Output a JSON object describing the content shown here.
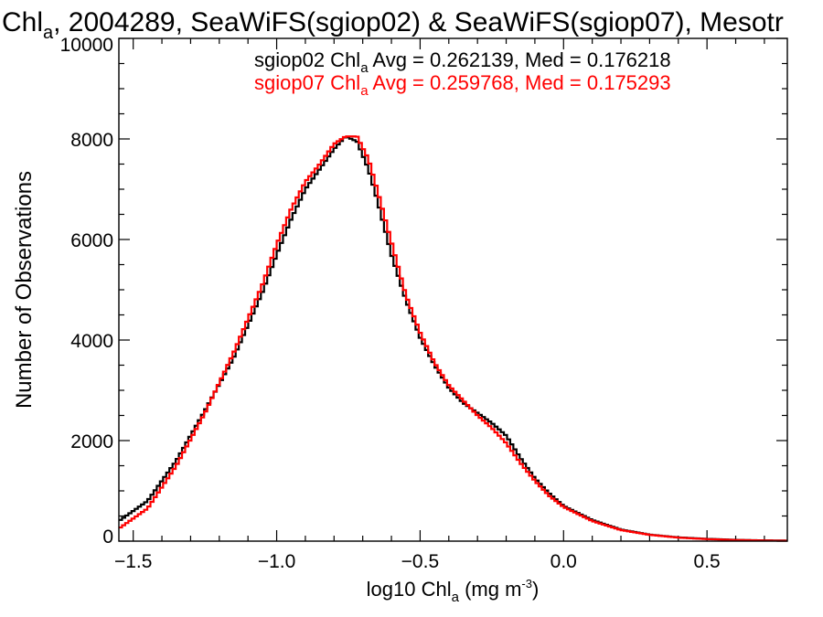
{
  "chart_data": {
    "type": "line",
    "title": {
      "prefix": "Chl",
      "sub": "a",
      "rest": ", 2004289, SeaWiFS(sgiop02) & SeaWiFS(sgiop07), Mesotr"
    },
    "xlabel": {
      "prefix": "log10 Chl",
      "sub": "a",
      "mid": " (mg m",
      "sup": "-3",
      "end": ")"
    },
    "ylabel": "Number of Observations",
    "xlim": [
      -1.55,
      0.78
    ],
    "ylim": [
      0,
      10000
    ],
    "x_ticks": [
      -1.5,
      -1.0,
      -0.5,
      0.0,
      0.5
    ],
    "x_tick_labels": [
      "−1.5",
      "−1.0",
      "−0.5",
      "0.0",
      "0.5"
    ],
    "y_ticks": [
      0,
      2000,
      4000,
      6000,
      8000,
      10000
    ],
    "y_tick_labels": [
      "0",
      "2000",
      "4000",
      "6000",
      "8000",
      "10000"
    ],
    "legend": [
      {
        "prefix": "sgiop02 Chl",
        "sub": "a",
        "rest": " Avg = 0.262139, Med = 0.176218",
        "color": "#000000"
      },
      {
        "prefix": "sgiop07 Chl",
        "sub": "a",
        "rest": " Avg = 0.259768, Med = 0.175293",
        "color": "#ff0000"
      }
    ],
    "legend_position": "top-right",
    "series": [
      {
        "name": "sgiop02",
        "color": "#000000",
        "x": [
          -1.55,
          -1.45,
          -1.35,
          -1.25,
          -1.15,
          -1.05,
          -1.0,
          -0.95,
          -0.9,
          -0.85,
          -0.8,
          -0.76,
          -0.72,
          -0.68,
          -0.65,
          -0.6,
          -0.55,
          -0.5,
          -0.45,
          -0.4,
          -0.35,
          -0.3,
          -0.25,
          -0.2,
          -0.15,
          -0.1,
          -0.05,
          0.0,
          0.1,
          0.2,
          0.3,
          0.4,
          0.5,
          0.6,
          0.7,
          0.78
        ],
        "y": [
          400,
          800,
          1600,
          2600,
          3650,
          4950,
          5700,
          6400,
          7000,
          7400,
          7800,
          8050,
          7950,
          7400,
          6800,
          5700,
          4800,
          4050,
          3500,
          3050,
          2750,
          2550,
          2350,
          2100,
          1650,
          1250,
          950,
          700,
          420,
          230,
          130,
          75,
          45,
          25,
          15,
          10
        ]
      },
      {
        "name": "sgiop07",
        "color": "#ff0000",
        "x": [
          -1.55,
          -1.45,
          -1.35,
          -1.25,
          -1.15,
          -1.05,
          -1.0,
          -0.95,
          -0.9,
          -0.85,
          -0.8,
          -0.76,
          -0.72,
          -0.68,
          -0.65,
          -0.6,
          -0.55,
          -0.5,
          -0.45,
          -0.4,
          -0.35,
          -0.3,
          -0.25,
          -0.2,
          -0.15,
          -0.1,
          -0.05,
          0.0,
          0.1,
          0.2,
          0.3,
          0.4,
          0.5,
          0.6,
          0.7,
          0.78
        ],
        "y": [
          250,
          650,
          1500,
          2550,
          3750,
          5100,
          5900,
          6600,
          7150,
          7500,
          7900,
          8050,
          8050,
          7600,
          7000,
          5950,
          4900,
          4150,
          3550,
          3100,
          2800,
          2500,
          2250,
          1950,
          1550,
          1200,
          900,
          680,
          400,
          220,
          125,
          70,
          40,
          22,
          12,
          8
        ]
      }
    ]
  }
}
